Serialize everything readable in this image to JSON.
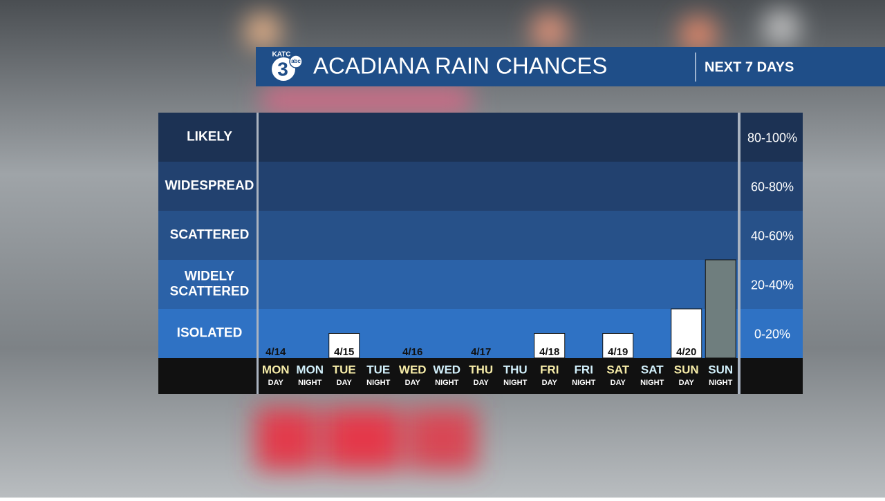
{
  "header": {
    "logo_call": "KATC",
    "logo_number": "3",
    "logo_network": "abc",
    "title": "ACADIANA RAIN CHANCES",
    "subtitle": "NEXT 7 DAYS"
  },
  "chart_data": {
    "type": "bar",
    "days": [
      "MON",
      "MON",
      "TUE",
      "TUE",
      "WED",
      "WED",
      "THU",
      "THU",
      "FRI",
      "FRI",
      "SAT",
      "SAT",
      "SUN",
      "SUN"
    ],
    "parts": [
      "DAY",
      "NIGHT",
      "DAY",
      "NIGHT",
      "DAY",
      "NIGHT",
      "DAY",
      "NIGHT",
      "DAY",
      "NIGHT",
      "DAY",
      "NIGHT",
      "DAY",
      "NIGHT"
    ],
    "dates": [
      "4/14",
      null,
      "4/15",
      null,
      "4/16",
      null,
      "4/17",
      null,
      "4/18",
      null,
      "4/19",
      null,
      "4/20",
      null
    ],
    "values": [
      0,
      0,
      10,
      0,
      0,
      0,
      0,
      0,
      10,
      0,
      10,
      0,
      20,
      40
    ],
    "colors": [
      "#ffffff",
      "#6f7e7e",
      "#ffffff",
      "#6f7e7e",
      "#ffffff",
      "#6f7e7e",
      "#ffffff",
      "#6f7e7e",
      "#ffffff",
      "#6f7e7e",
      "#ffffff",
      "#6f7e7e",
      "#ffffff",
      "#6f7e7e"
    ],
    "ylim": [
      0,
      100
    ],
    "bands": [
      {
        "label": "ISOLATED",
        "range": "0-20%",
        "from": 0,
        "to": 20,
        "color": "#2f72c4"
      },
      {
        "label": "WIDELY SCATTERED",
        "range": "20-40%",
        "from": 20,
        "to": 40,
        "color": "#2b62a8"
      },
      {
        "label": "SCATTERED",
        "range": "40-60%",
        "from": 40,
        "to": 60,
        "color": "#275189"
      },
      {
        "label": "WIDESPREAD",
        "range": "60-80%",
        "from": 60,
        "to": 80,
        "color": "#22416f"
      },
      {
        "label": "LIKELY",
        "range": "80-100%",
        "from": 80,
        "to": 100,
        "color": "#1c3254"
      }
    ],
    "day_label_color": "#f6eca8",
    "night_label_color": "#d2f0fb"
  }
}
